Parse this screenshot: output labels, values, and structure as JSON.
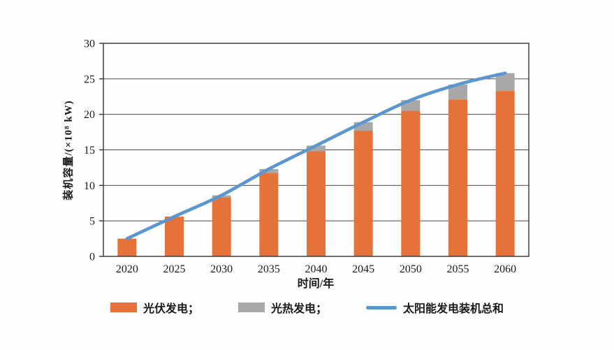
{
  "chart_data": {
    "type": "bar",
    "subtype": "stacked-bars-with-line-overlay",
    "title": "",
    "xlabel": "时间/年",
    "ylabel": "装机容量/(×10⁸ kW)",
    "categories": [
      "2020",
      "2025",
      "2030",
      "2035",
      "2040",
      "2045",
      "2050",
      "2055",
      "2060"
    ],
    "series": [
      {
        "name": "光伏发电；",
        "type": "bar",
        "color": "#E57339",
        "values": [
          2.5,
          5.6,
          8.3,
          11.7,
          14.8,
          17.7,
          20.5,
          22.1,
          23.3
        ]
      },
      {
        "name": "光热发电；",
        "type": "bar",
        "color": "#A8A8A8",
        "values": [
          0,
          0,
          0.3,
          0.6,
          0.8,
          1.2,
          1.5,
          2.1,
          2.5
        ]
      },
      {
        "name": "太阳能发电装机总和",
        "type": "line",
        "color": "#5A97CF",
        "values": [
          2.5,
          5.6,
          8.6,
          12.3,
          15.6,
          18.9,
          22.0,
          24.2,
          25.8
        ]
      }
    ],
    "ylim": [
      0,
      30
    ],
    "yticks": [
      0,
      5,
      10,
      15,
      20,
      25,
      30
    ],
    "grid": "horizontal",
    "legend_position": "bottom",
    "axis_color": "#333333",
    "tick_label_color": "#1a1a1a"
  }
}
